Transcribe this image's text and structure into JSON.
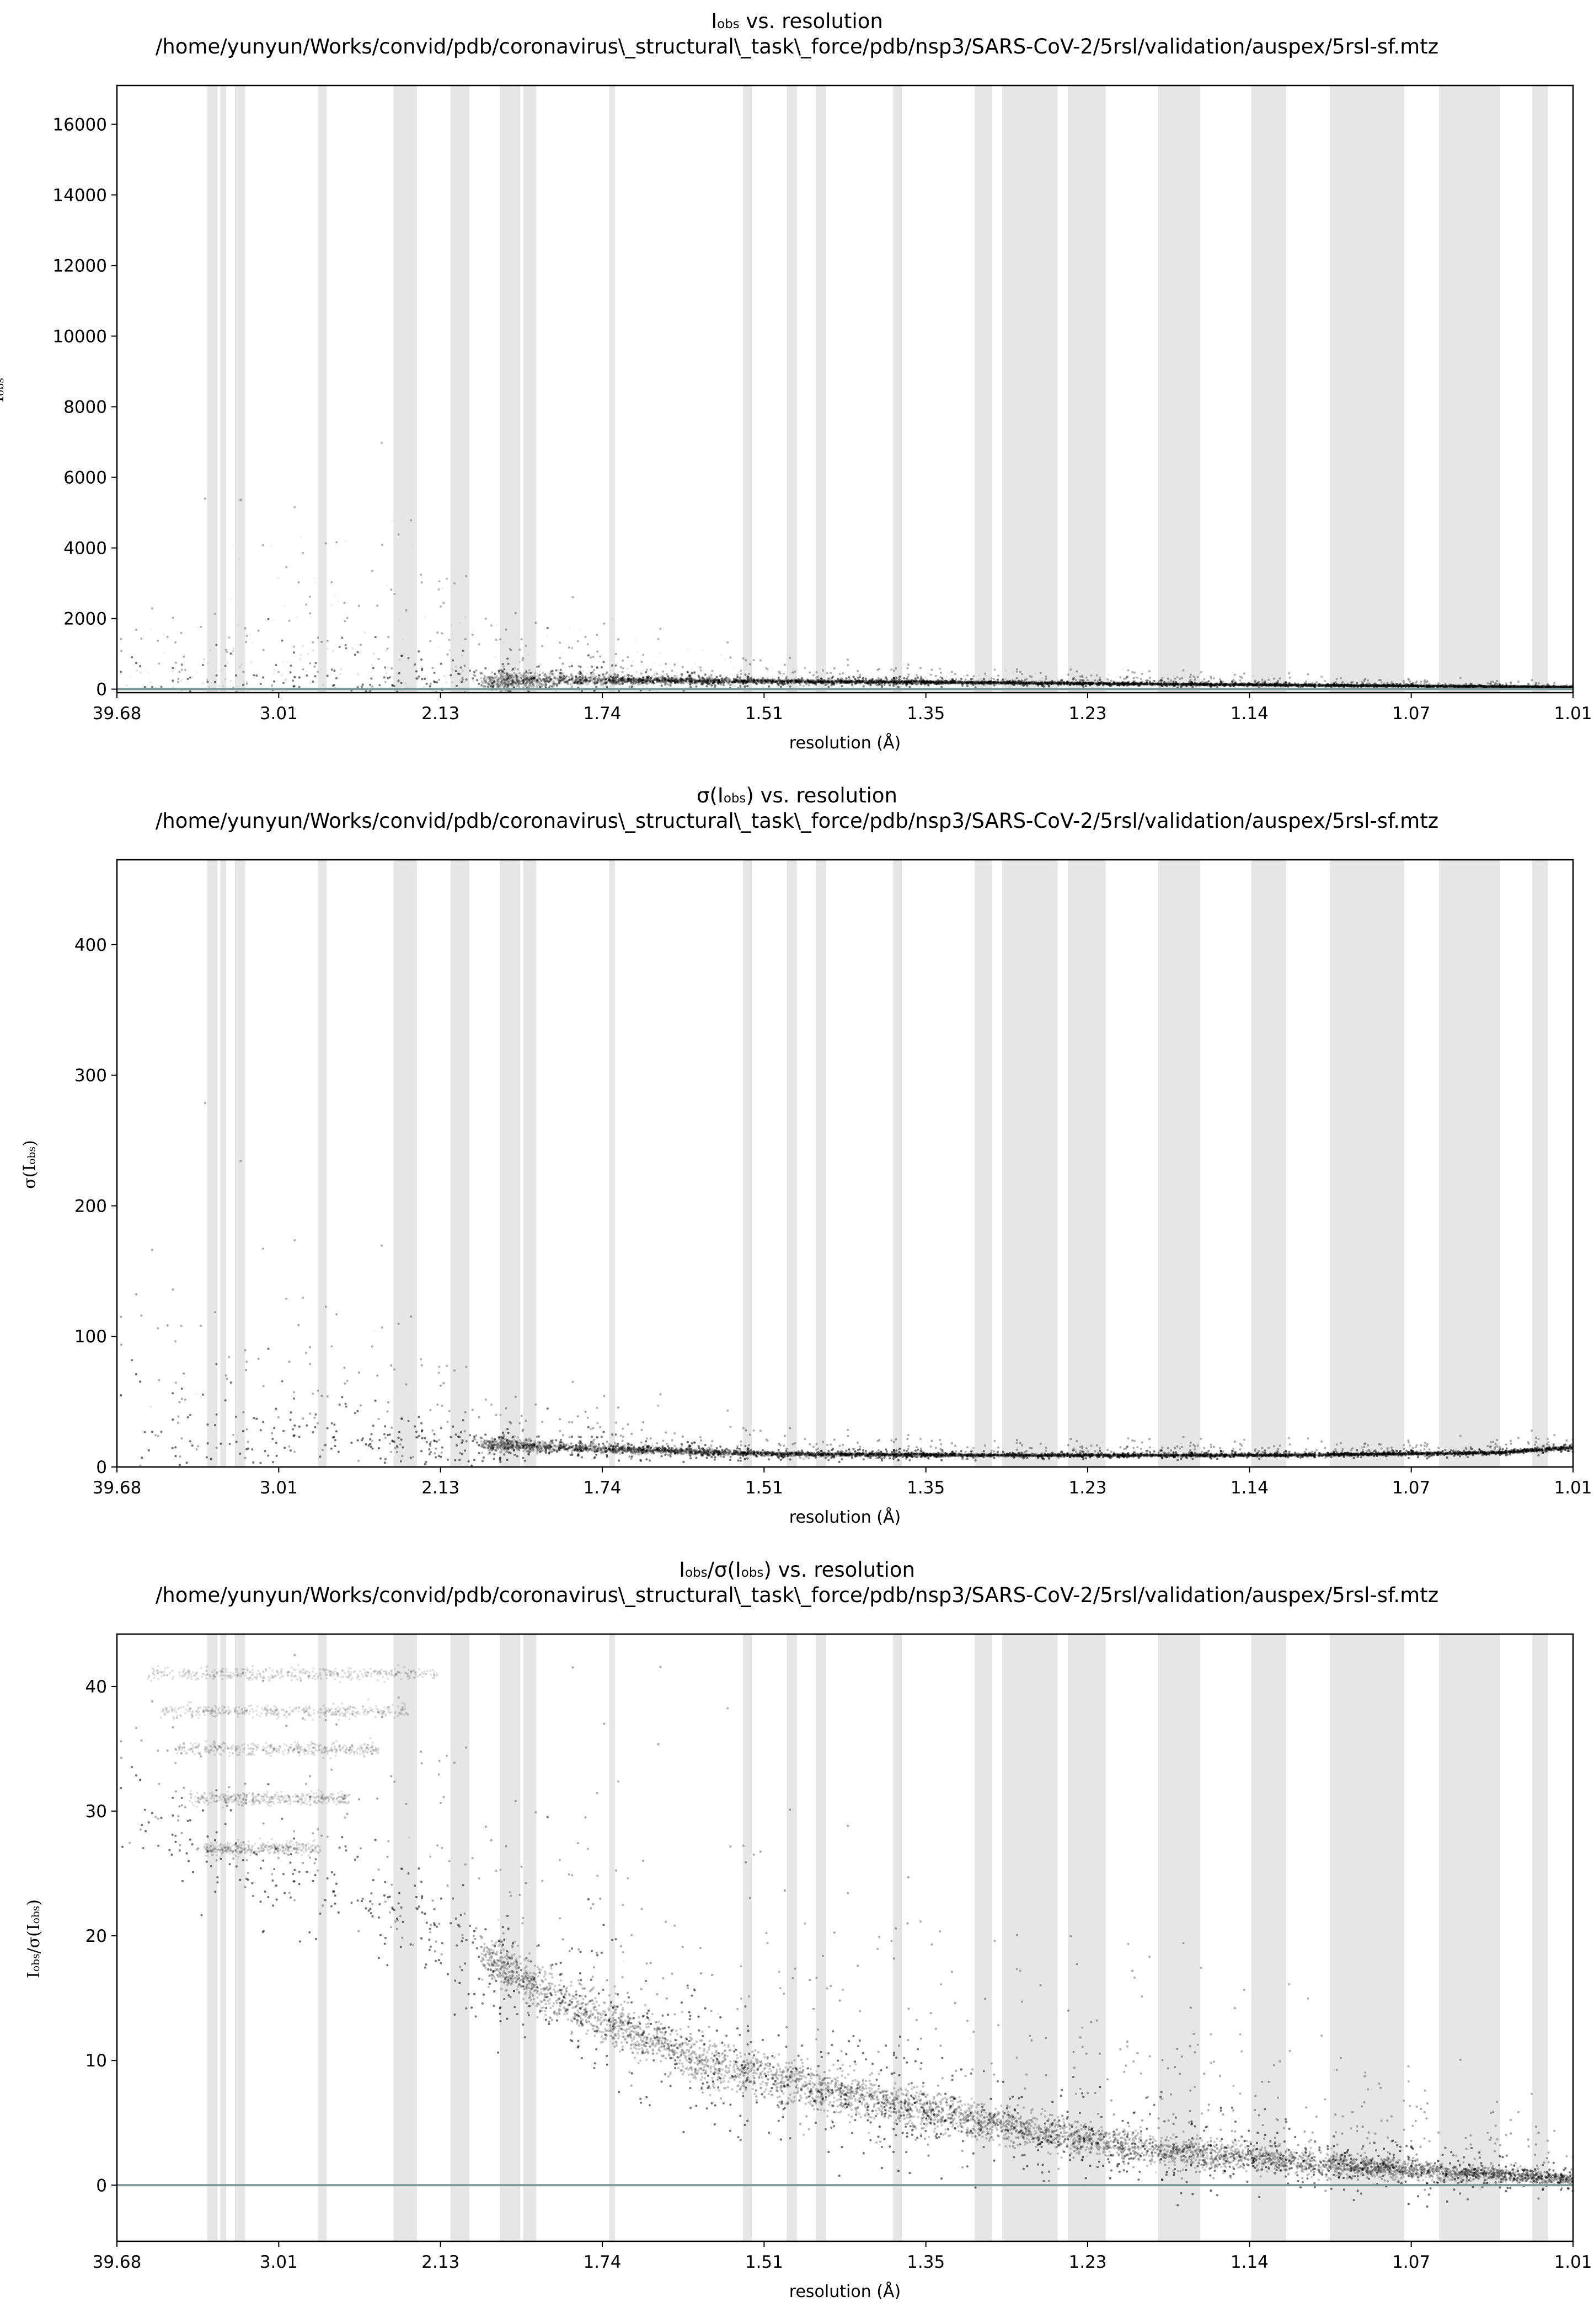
{
  "chart_data": [
    {
      "type": "scatter",
      "title_prefix": "I",
      "title_sub": "obs",
      "title_suffix": " vs. resolution",
      "subtitle": "/home/yunyun/Works/convid/pdb/coronavirus\\_structural\\_task\\_force/pdb/nsp3/SARS-CoV-2/5rsl/validation/auspex/5rsl-sf.mtz",
      "xlabel": "resolution (Å)",
      "ylabel_main": "I",
      "ylabel_sub": "obs",
      "ylabel_suffix": "",
      "x_ticks": [
        "39.68",
        "3.01",
        "2.13",
        "1.74",
        "1.51",
        "1.35",
        "1.23",
        "1.14",
        "1.07",
        "1.01"
      ],
      "y_ticks": [
        0,
        2000,
        4000,
        6000,
        8000,
        10000,
        12000,
        14000,
        16000
      ],
      "ylim": [
        -100,
        17100
      ],
      "zero_line": true,
      "series": [
        {
          "values": [
            {
              "x_frac": 0.02,
              "median": 30,
              "upper": 3500
            },
            {
              "x_frac": 0.1,
              "median": 60,
              "upper": 5000
            },
            {
              "x_frac": 0.15,
              "median": 100,
              "upper": 6000
            },
            {
              "x_frac": 0.2,
              "median": 150,
              "upper": 5000
            },
            {
              "x_frac": 0.25,
              "median": 200,
              "upper": 4000
            },
            {
              "x_frac": 0.3,
              "median": 260,
              "upper": 2500
            },
            {
              "x_frac": 0.35,
              "median": 250,
              "upper": 1500
            },
            {
              "x_frac": 0.45,
              "median": 220,
              "upper": 900
            },
            {
              "x_frac": 0.55,
              "median": 200,
              "upper": 700
            },
            {
              "x_frac": 0.7,
              "median": 150,
              "upper": 500
            },
            {
              "x_frac": 0.85,
              "median": 100,
              "upper": 350
            },
            {
              "x_frac": 1.0,
              "median": 60,
              "upper": 200
            }
          ]
        }
      ]
    },
    {
      "type": "scatter",
      "title_prefix": "σ(I",
      "title_sub": "obs",
      "title_suffix": ") vs. resolution",
      "subtitle": "/home/yunyun/Works/convid/pdb/coronavirus\\_structural\\_task\\_force/pdb/nsp3/SARS-CoV-2/5rsl/validation/auspex/5rsl-sf.mtz",
      "xlabel": "resolution (Å)",
      "ylabel_main": "σ(I",
      "ylabel_sub": "obs",
      "ylabel_suffix": ")",
      "x_ticks": [
        "39.68",
        "3.01",
        "2.13",
        "1.74",
        "1.51",
        "1.35",
        "1.23",
        "1.14",
        "1.07",
        "1.01"
      ],
      "y_ticks": [
        0,
        100,
        200,
        300,
        400
      ],
      "ylim": [
        0,
        465
      ],
      "zero_line": false,
      "series": [
        {
          "values": [
            {
              "x_frac": 0.02,
              "median": 25,
              "upper": 250
            },
            {
              "x_frac": 0.1,
              "median": 25,
              "upper": 200
            },
            {
              "x_frac": 0.2,
              "median": 20,
              "upper": 120
            },
            {
              "x_frac": 0.3,
              "median": 15,
              "upper": 60
            },
            {
              "x_frac": 0.45,
              "median": 10,
              "upper": 30
            },
            {
              "x_frac": 0.6,
              "median": 9,
              "upper": 22
            },
            {
              "x_frac": 0.8,
              "median": 9,
              "upper": 20
            },
            {
              "x_frac": 0.95,
              "median": 11,
              "upper": 22
            },
            {
              "x_frac": 1.0,
              "median": 15,
              "upper": 30
            }
          ]
        }
      ]
    },
    {
      "type": "scatter",
      "title_prefix": "I",
      "title_sub": "obs",
      "title_suffix": "/σ(I",
      "title_sub2": "obs",
      "title_suffix2": ") vs. resolution",
      "subtitle": "/home/yunyun/Works/convid/pdb/coronavirus\\_structural\\_task\\_force/pdb/nsp3/SARS-CoV-2/5rsl/validation/auspex/5rsl-sf.mtz",
      "xlabel": "resolution (Å)",
      "ylabel_main": "I",
      "ylabel_sub": "obs",
      "ylabel_suffix": "/σ(I",
      "ylabel_sub2": "obs",
      "ylabel_suffix2": ")",
      "x_ticks": [
        "39.68",
        "3.01",
        "2.13",
        "1.74",
        "1.51",
        "1.35",
        "1.23",
        "1.14",
        "1.07",
        "1.01"
      ],
      "y_ticks": [
        0,
        10,
        20,
        30,
        40
      ],
      "ylim": [
        -4.5,
        44.2
      ],
      "zero_line": true,
      "series": [
        {
          "values": [
            {
              "x_frac": 0.02,
              "median": 30,
              "upper": 44
            },
            {
              "x_frac": 0.1,
              "median": 25,
              "upper": 44
            },
            {
              "x_frac": 0.2,
              "median": 22,
              "upper": 42
            },
            {
              "x_frac": 0.3,
              "median": 15,
              "upper": 38
            },
            {
              "x_frac": 0.4,
              "median": 10,
              "upper": 33
            },
            {
              "x_frac": 0.55,
              "median": 6,
              "upper": 25
            },
            {
              "x_frac": 0.7,
              "median": 3,
              "upper": 18
            },
            {
              "x_frac": 0.85,
              "median": 1.5,
              "upper": 12
            },
            {
              "x_frac": 1.0,
              "median": 0.5,
              "upper": 5
            }
          ]
        }
      ],
      "bands": [
        41,
        38,
        35,
        31,
        27
      ]
    }
  ],
  "ice_rings_frac": [
    [
      0.062,
      0.069
    ],
    [
      0.071,
      0.075
    ],
    [
      0.081,
      0.088
    ],
    [
      0.138,
      0.144
    ],
    [
      0.19,
      0.206
    ],
    [
      0.229,
      0.242
    ],
    [
      0.263,
      0.269
    ],
    [
      0.269,
      0.277
    ],
    [
      0.279,
      0.288
    ],
    [
      0.338,
      0.342
    ],
    [
      0.43,
      0.436
    ],
    [
      0.46,
      0.467
    ],
    [
      0.48,
      0.487
    ],
    [
      0.533,
      0.539
    ],
    [
      0.589,
      0.601
    ],
    [
      0.608,
      0.646
    ],
    [
      0.653,
      0.679
    ],
    [
      0.715,
      0.744
    ],
    [
      0.779,
      0.803
    ],
    [
      0.833,
      0.884
    ],
    [
      0.908,
      0.95
    ],
    [
      0.972,
      0.983
    ]
  ],
  "colors": {
    "ice_ring": "#e6e6e6",
    "zero_line": "#7f9a9a",
    "points": "#000000",
    "axes": "#000000"
  }
}
